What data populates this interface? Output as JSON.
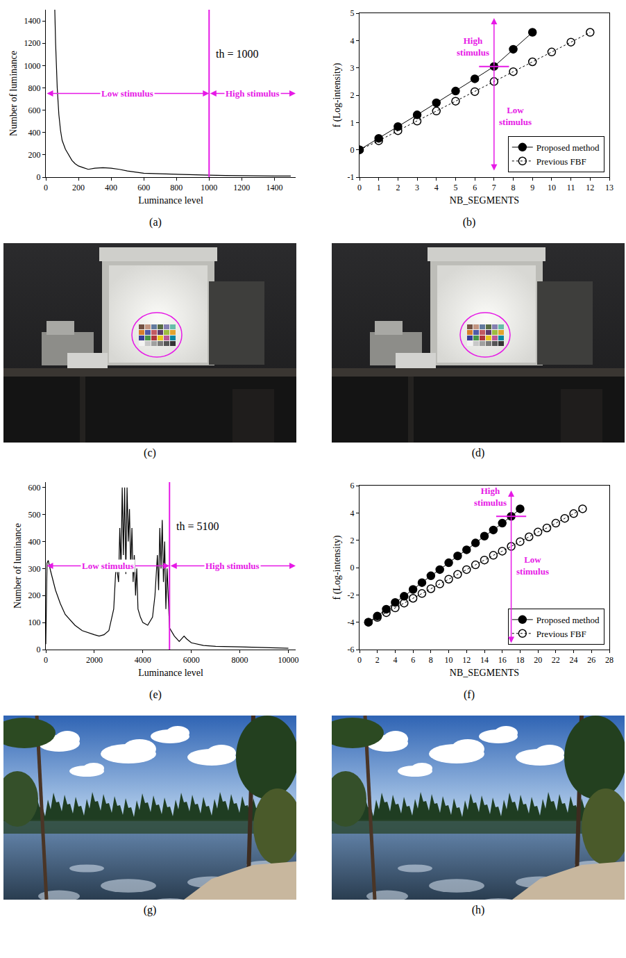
{
  "chart_data": [
    {
      "type": "line",
      "label": "(a)",
      "x_label": "Luminance level",
      "y_label": "Number of luminance",
      "x": [
        55,
        60,
        70,
        80,
        90,
        100,
        120,
        140,
        160,
        180,
        200,
        230,
        260,
        300,
        350,
        400,
        450,
        500,
        600,
        700,
        800,
        900,
        1000,
        1100,
        1200,
        1300,
        1400,
        1500
      ],
      "values": [
        1500,
        1200,
        800,
        560,
        420,
        330,
        250,
        200,
        150,
        120,
        100,
        85,
        70,
        80,
        85,
        80,
        70,
        55,
        35,
        30,
        25,
        20,
        18,
        15,
        12,
        12,
        10,
        10
      ],
      "color": "#000000",
      "xlim": [
        0,
        1530
      ],
      "xticks": [
        0,
        200,
        400,
        600,
        800,
        1000,
        1200,
        1400
      ],
      "ylim": [
        0,
        1500
      ],
      "yticks": [
        0,
        200,
        400,
        600,
        800,
        1000,
        1200,
        1400
      ],
      "grid": false,
      "threshold": {
        "value": 1000,
        "label": "th = 1000",
        "color": "#e619e6"
      },
      "regions": [
        {
          "label": "Low stimulus"
        },
        {
          "label": "High stimulus"
        }
      ]
    },
    {
      "type": "line",
      "label": "(b)",
      "x_label": "NB_SEGMENTS",
      "y_label": "f (Log-intensity)",
      "series": [
        {
          "name": "Proposed method",
          "color": "#000000",
          "marker": "circle",
          "line_style": "solid",
          "x": [
            0,
            1,
            2,
            3,
            4,
            5,
            6,
            7,
            8,
            9
          ],
          "values": [
            0,
            0.42,
            0.85,
            1.28,
            1.72,
            2.15,
            2.6,
            3.05,
            3.68,
            4.3
          ]
        },
        {
          "name": "Previous FBF",
          "color": "#000000",
          "marker": "circle-open",
          "line_style": "dot",
          "x": [
            0,
            1,
            2,
            3,
            4,
            5,
            6,
            7,
            8,
            9,
            10,
            11,
            12
          ],
          "values": [
            0,
            0.33,
            0.7,
            1.05,
            1.42,
            1.78,
            2.13,
            2.5,
            2.86,
            3.22,
            3.58,
            3.94,
            4.3
          ]
        }
      ],
      "xlim": [
        0,
        13
      ],
      "xticks": [
        0,
        1,
        2,
        3,
        4,
        5,
        6,
        7,
        8,
        9,
        10,
        11,
        12,
        13
      ],
      "ylim": [
        -1,
        5
      ],
      "yticks": [
        -1,
        0,
        1,
        2,
        3,
        4,
        5
      ],
      "grid": false,
      "legend": "bottom right",
      "split": {
        "x": 7,
        "y": 3.05,
        "color": "#e619e6",
        "labels": [
          "High stimulus",
          "Low stimulus"
        ]
      }
    },
    {
      "type": "image",
      "label": "(c)"
    },
    {
      "type": "image",
      "label": "(d)"
    },
    {
      "type": "line",
      "label": "(e)",
      "x_label": "Luminance level",
      "y_label": "Number of luminance",
      "x": [
        0,
        50,
        100,
        200,
        400,
        600,
        800,
        1000,
        1200,
        1500,
        1800,
        2000,
        2200,
        2400,
        2600,
        2800,
        2900,
        3000,
        3050,
        3100,
        3150,
        3200,
        3250,
        3300,
        3350,
        3400,
        3450,
        3500,
        3550,
        3600,
        3650,
        3700,
        3750,
        3800,
        3900,
        4000,
        4200,
        4400,
        4500,
        4600,
        4650,
        4700,
        4750,
        4800,
        4850,
        4900,
        4950,
        5000,
        5100,
        5300,
        5500,
        5700,
        5800,
        6000,
        6500,
        7000,
        8000,
        9000,
        10000
      ],
      "values": [
        20,
        320,
        330,
        290,
        220,
        170,
        130,
        110,
        90,
        70,
        60,
        55,
        50,
        55,
        70,
        150,
        320,
        250,
        450,
        300,
        600,
        350,
        600,
        280,
        600,
        400,
        520,
        300,
        450,
        250,
        350,
        200,
        300,
        150,
        120,
        100,
        90,
        120,
        200,
        350,
        220,
        450,
        300,
        480,
        250,
        400,
        150,
        300,
        80,
        50,
        30,
        50,
        40,
        25,
        15,
        12,
        10,
        8,
        5
      ],
      "color": "#000000",
      "xlim": [
        0,
        10300
      ],
      "xticks": [
        0,
        2000,
        4000,
        6000,
        8000,
        10000
      ],
      "ylim": [
        0,
        620
      ],
      "yticks": [
        0,
        100,
        200,
        300,
        400,
        500,
        600
      ],
      "grid": false,
      "threshold": {
        "value": 5100,
        "label": "th = 5100",
        "color": "#e619e6"
      },
      "regions": [
        {
          "label": "Low stimulus"
        },
        {
          "label": "High stimulus"
        }
      ]
    },
    {
      "type": "line",
      "label": "(f)",
      "x_label": "NB_SEGMENTS",
      "y_label": "f (Log-intensity)",
      "series": [
        {
          "name": "Proposed method",
          "color": "#000000",
          "marker": "circle",
          "line_style": "solid",
          "x": [
            1,
            2,
            3,
            4,
            5,
            6,
            7,
            8,
            9,
            10,
            11,
            12,
            13,
            14,
            15,
            16,
            17,
            18
          ],
          "values": [
            -4,
            -3.55,
            -3.05,
            -2.55,
            -2.1,
            -1.6,
            -1.1,
            -0.6,
            -0.15,
            0.35,
            0.85,
            1.3,
            1.8,
            2.3,
            2.75,
            3.25,
            3.75,
            4.3
          ]
        },
        {
          "name": "Previous FBF",
          "color": "#000000",
          "marker": "circle-open",
          "line_style": "dot",
          "x": [
            1,
            2,
            3,
            4,
            5,
            6,
            7,
            8,
            9,
            10,
            11,
            12,
            13,
            14,
            15,
            16,
            17,
            18,
            19,
            20,
            21,
            22,
            23,
            24,
            25
          ],
          "values": [
            -4,
            -3.65,
            -3.3,
            -2.95,
            -2.6,
            -2.25,
            -1.9,
            -1.55,
            -1.2,
            -0.85,
            -0.5,
            -0.15,
            0.2,
            0.55,
            0.9,
            1.2,
            1.55,
            1.9,
            2.25,
            2.6,
            2.9,
            3.25,
            3.6,
            3.95,
            4.3
          ]
        }
      ],
      "xlim": [
        0,
        28
      ],
      "xticks": [
        0,
        2,
        4,
        6,
        8,
        10,
        12,
        14,
        16,
        18,
        20,
        22,
        24,
        26,
        28
      ],
      "ylim": [
        -6,
        6
      ],
      "yticks": [
        -6,
        -4,
        -2,
        0,
        2,
        4,
        6
      ],
      "grid": false,
      "legend": "bottom right",
      "split": {
        "x": 17,
        "y": 3.75,
        "color": "#e619e6",
        "labels": [
          "High stimulus",
          "Low stimulus"
        ]
      }
    },
    {
      "type": "image",
      "label": "(g)"
    },
    {
      "type": "image",
      "label": "(h)"
    }
  ]
}
